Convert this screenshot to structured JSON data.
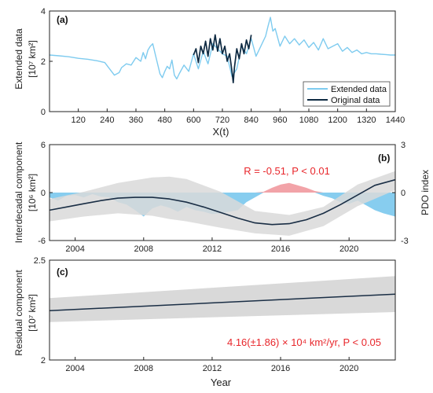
{
  "chart_data": [
    {
      "panel": "(a)",
      "type": "line",
      "ylabel": "Extended data",
      "yunit": "[10⁷ km²]",
      "xlabel": "X(t)",
      "xlim": [
        0,
        1440
      ],
      "ylim": [
        0,
        4
      ],
      "xticks": [
        120,
        240,
        360,
        480,
        600,
        720,
        840,
        960,
        1080,
        1200,
        1320,
        1440
      ],
      "yticks": [
        0,
        2,
        4
      ],
      "legend": "bottom-right",
      "series": [
        {
          "name": "Extended data",
          "color": "#7ecbef",
          "x": [
            0,
            40,
            80,
            120,
            160,
            200,
            230,
            250,
            270,
            290,
            300,
            320,
            340,
            360,
            380,
            390,
            400,
            410,
            420,
            430,
            440,
            460,
            470,
            480,
            490,
            500,
            510,
            520,
            530,
            540,
            560,
            580,
            600,
            620,
            640,
            660,
            680,
            700,
            720,
            740,
            760,
            780,
            800,
            820,
            840,
            860,
            880,
            900,
            910,
            920,
            930,
            940,
            960,
            980,
            1000,
            1020,
            1040,
            1060,
            1080,
            1100,
            1120,
            1140,
            1160,
            1180,
            1200,
            1220,
            1240,
            1260,
            1280,
            1300,
            1320,
            1340,
            1360,
            1380,
            1400,
            1420,
            1440
          ],
          "y": [
            2.25,
            2.22,
            2.18,
            2.12,
            2.08,
            2.02,
            1.95,
            1.7,
            1.45,
            1.55,
            1.75,
            1.9,
            1.85,
            2.15,
            2.0,
            2.35,
            2.1,
            2.45,
            2.6,
            2.7,
            2.3,
            1.5,
            1.35,
            1.6,
            1.8,
            1.7,
            2.05,
            1.45,
            1.3,
            1.5,
            1.85,
            1.6,
            2.3,
            1.7,
            2.4,
            1.9,
            2.7,
            2.5,
            2.3,
            2.2,
            1.4,
            1.7,
            2.6,
            2.3,
            2.9,
            2.2,
            2.6,
            3.0,
            3.4,
            3.75,
            3.2,
            3.3,
            2.6,
            3.0,
            2.7,
            2.9,
            2.65,
            2.85,
            2.55,
            2.75,
            2.45,
            2.9,
            2.5,
            2.6,
            2.7,
            2.4,
            2.55,
            2.35,
            2.45,
            2.3,
            2.35,
            2.3,
            2.3,
            2.28,
            2.27,
            2.25,
            2.25
          ]
        },
        {
          "name": "Original data",
          "color": "#0e2a42",
          "x": [
            600,
            610,
            620,
            630,
            640,
            650,
            660,
            670,
            680,
            690,
            700,
            710,
            720,
            730,
            740,
            750,
            760,
            765,
            770,
            780,
            790,
            800,
            810,
            820,
            830,
            840
          ],
          "y": [
            2.25,
            2.5,
            1.95,
            2.6,
            2.3,
            2.8,
            2.2,
            2.9,
            2.45,
            3.05,
            2.4,
            2.9,
            2.3,
            2.6,
            2.0,
            2.3,
            1.6,
            1.15,
            1.75,
            2.5,
            2.1,
            2.7,
            2.3,
            2.85,
            2.5,
            3.05
          ]
        }
      ]
    },
    {
      "panel": "(b)",
      "type": "line",
      "ylabel": "Interdecadal component",
      "yunit": "[10⁶ km²]",
      "y2label": "PDO index",
      "xlim": [
        2002.5,
        2022.7
      ],
      "ylim": [
        -6,
        6
      ],
      "y2lim": [
        -3,
        3
      ],
      "yticks": [
        -6,
        0,
        6
      ],
      "y2ticks": [
        -3,
        0,
        3
      ],
      "xticks": [
        2004,
        2008,
        2012,
        2016,
        2020
      ],
      "annotation": "R = -0.51, P < 0.01",
      "series": [
        {
          "name": "Interdecadal component",
          "color": "#1a2e45",
          "x": [
            2002.5,
            2003.5,
            2004.5,
            2005.5,
            2006.5,
            2007.5,
            2008.5,
            2009.5,
            2010.5,
            2011.5,
            2012.5,
            2013.5,
            2014.5,
            2015.5,
            2016.5,
            2017.5,
            2018.5,
            2019.5,
            2020.5,
            2021.5,
            2022.7
          ],
          "y": [
            -2.2,
            -1.8,
            -1.4,
            -1.0,
            -0.7,
            -0.6,
            -0.6,
            -0.8,
            -1.2,
            -1.8,
            -2.5,
            -3.2,
            -3.8,
            -4.0,
            -3.9,
            -3.4,
            -2.6,
            -1.5,
            -0.3,
            0.9,
            1.6
          ]
        },
        {
          "name": "Confidence band",
          "color": "#d9d9d9",
          "x": [
            2002.5,
            2004.5,
            2006.5,
            2008.5,
            2009.5,
            2010.5,
            2012.5,
            2014.5,
            2016.5,
            2018.5,
            2020.5,
            2022.7
          ],
          "lower": [
            -3.6,
            -3.0,
            -2.6,
            -2.9,
            -3.3,
            -3.6,
            -4.4,
            -5.1,
            -5.4,
            -4.2,
            -1.7,
            0.3
          ],
          "upper": [
            -0.8,
            0.1,
            1.2,
            1.9,
            2.0,
            1.7,
            0.1,
            -2.3,
            -2.8,
            -1.8,
            1.0,
            2.7
          ]
        },
        {
          "name": "PDO index",
          "color": "#87cdef",
          "positive_color": "#f2a3a8",
          "x": [
            2002.5,
            2003.0,
            2003.5,
            2004.0,
            2004.5,
            2005.0,
            2005.5,
            2006.0,
            2006.5,
            2007.0,
            2007.5,
            2008.0,
            2008.5,
            2009.0,
            2009.5,
            2010.0,
            2010.5,
            2011.0,
            2011.5,
            2012.0,
            2012.5,
            2013.0,
            2013.5,
            2014.0,
            2014.5,
            2015.0,
            2015.5,
            2016.0,
            2016.5,
            2017.0,
            2017.5,
            2018.0,
            2018.5,
            2019.0,
            2019.5,
            2020.0,
            2020.5,
            2021.0,
            2021.5,
            2022.0,
            2022.7
          ],
          "y": [
            -0.3,
            -0.5,
            -0.2,
            -0.15,
            -0.3,
            -0.1,
            -0.25,
            -0.3,
            -0.6,
            -0.75,
            -1.1,
            -1.5,
            -1.0,
            -0.8,
            -0.95,
            -1.2,
            -0.9,
            -1.1,
            -1.2,
            -1.35,
            -1.3,
            -1.2,
            -1.1,
            -0.6,
            -0.3,
            0.05,
            0.3,
            0.5,
            0.6,
            0.45,
            0.3,
            0.1,
            -0.2,
            -0.35,
            -0.6,
            -0.7,
            -0.5,
            -0.8,
            -1.1,
            -1.3,
            -1.5
          ]
        }
      ]
    },
    {
      "panel": "(c)",
      "type": "line",
      "ylabel": "Residual component",
      "yunit": "[10⁷ km²]",
      "xlabel": "Year",
      "xlim": [
        2002.5,
        2022.7
      ],
      "ylim": [
        2,
        2.5
      ],
      "yticks": [
        2,
        2.5
      ],
      "xticks": [
        2004,
        2008,
        2012,
        2016,
        2020
      ],
      "annotation": "4.16(±1.86) × 10⁴ km²/yr, P < 0.05",
      "series": [
        {
          "name": "Residual component",
          "color": "#1a2e45",
          "x": [
            2002.5,
            2022.7
          ],
          "y": [
            2.247,
            2.33
          ]
        },
        {
          "name": "Confidence band",
          "color": "#d9d9d9",
          "x": [
            2002.5,
            2022.7
          ],
          "lower": [
            2.19,
            2.24
          ],
          "upper": [
            2.31,
            2.42
          ]
        }
      ]
    }
  ]
}
